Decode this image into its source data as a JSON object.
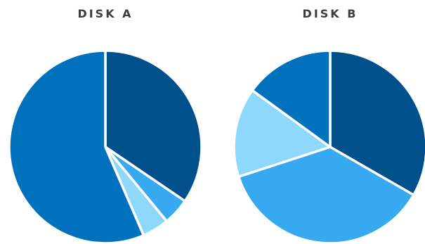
{
  "chart_data": [
    {
      "type": "pie",
      "title": "DISK A",
      "slices": [
        {
          "value": 34.5,
          "color": "#00508c"
        },
        {
          "value": 4.5,
          "color": "#36a9f0"
        },
        {
          "value": 4.5,
          "color": "#8ed8fd"
        },
        {
          "value": 56.5,
          "color": "#0071bc"
        }
      ]
    },
    {
      "type": "pie",
      "title": "DISK B",
      "slices": [
        {
          "value": 33.3,
          "color": "#00508c"
        },
        {
          "value": 36.7,
          "color": "#36a9f0"
        },
        {
          "value": 15.0,
          "color": "#8ed8fd"
        },
        {
          "value": 15.0,
          "color": "#0071bc"
        }
      ]
    }
  ]
}
